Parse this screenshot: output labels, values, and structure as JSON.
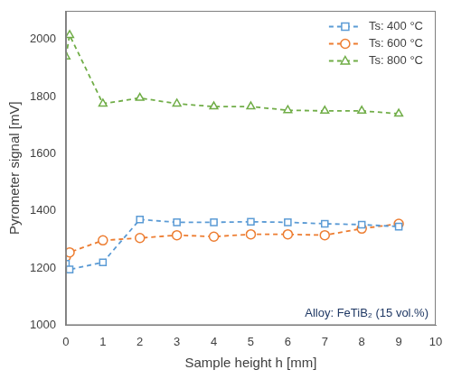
{
  "chart_data": {
    "type": "line",
    "x_label": "Sample height h [mm]",
    "y_label": "Pyrometer signal [mV]",
    "annotation": "Alloy: FeTiB₂ (15 vol.%)",
    "series": [
      {
        "name": "Ts: 400 °C",
        "color": "#5b9bd5",
        "marker": "square",
        "line_style": "dashed",
        "x": [
          0,
          0.1,
          1,
          2,
          3,
          4,
          5,
          6,
          7,
          8,
          9
        ],
        "values": [
          1215,
          1195,
          1220,
          1370,
          1360,
          1360,
          1362,
          1360,
          1355,
          1352,
          1345
        ]
      },
      {
        "name": "Ts: 600 °C",
        "color": "#ed7d31",
        "marker": "circle",
        "line_style": "dashed",
        "x": [
          0,
          0.1,
          1,
          2,
          3,
          4,
          5,
          6,
          7,
          8,
          9
        ],
        "values": [
          1240,
          1255,
          1297,
          1305,
          1315,
          1310,
          1318,
          1318,
          1315,
          1338,
          1355
        ]
      },
      {
        "name": "Ts: 800 °C",
        "color": "#70ad47",
        "marker": "triangle",
        "line_style": "dashed",
        "x": [
          0,
          0.1,
          1,
          2,
          3,
          4,
          5,
          6,
          7,
          8,
          9
        ],
        "values": [
          1940,
          2015,
          1775,
          1795,
          1775,
          1765,
          1765,
          1752,
          1750,
          1750,
          1740
        ]
      }
    ],
    "xlim": [
      0,
      10
    ],
    "xticks": [
      0,
      1,
      2,
      3,
      4,
      5,
      6,
      7,
      8,
      9,
      10
    ],
    "ylim": [
      1000,
      2100
    ],
    "yticks": [
      1000,
      1200,
      1400,
      1600,
      1800,
      2000
    ],
    "grid": false,
    "legend": "upper right"
  }
}
